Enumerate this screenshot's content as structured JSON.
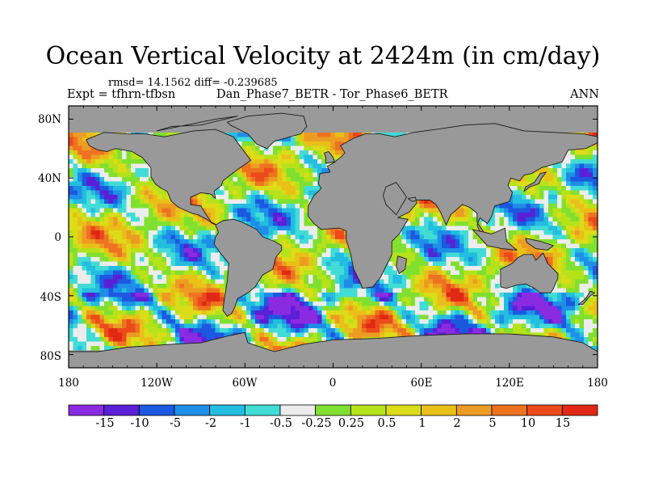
{
  "title": "Ocean Vertical Velocity at 2424m (in cm/day)",
  "stats_line": "rmsd= 14.1562 diff= -0.239685",
  "expt_label": "Expt = tfhrn-tfbsn",
  "subtitle": "Dan_Phase7_BETR - Tor_Phase6_BETR",
  "season": "ANN",
  "lat_ticks": [
    "80N",
    "40N",
    "0",
    "40S",
    "80S"
  ],
  "lon_ticks": [
    "180",
    "120W",
    "60W",
    "0",
    "60E",
    "120E",
    "180"
  ],
  "colorbar_labels": [
    "-15",
    "-10",
    "-5",
    "-2",
    "-1",
    "-0.5",
    "-0.25",
    "0.25",
    "0.5",
    "1",
    "2",
    "5",
    "10",
    "15"
  ],
  "colorbar_colors": [
    "#8a2be2",
    "#5a1fd6",
    "#1d58e0",
    "#1e8ee8",
    "#22bde0",
    "#41dcd6",
    "#ececec",
    "#80e030",
    "#b6e21a",
    "#dcdc18",
    "#e8c018",
    "#ec9c22",
    "#ee7220",
    "#ec4a1a",
    "#e02814"
  ],
  "land_color": "#999999",
  "missing_color": "#9a9a9a"
}
